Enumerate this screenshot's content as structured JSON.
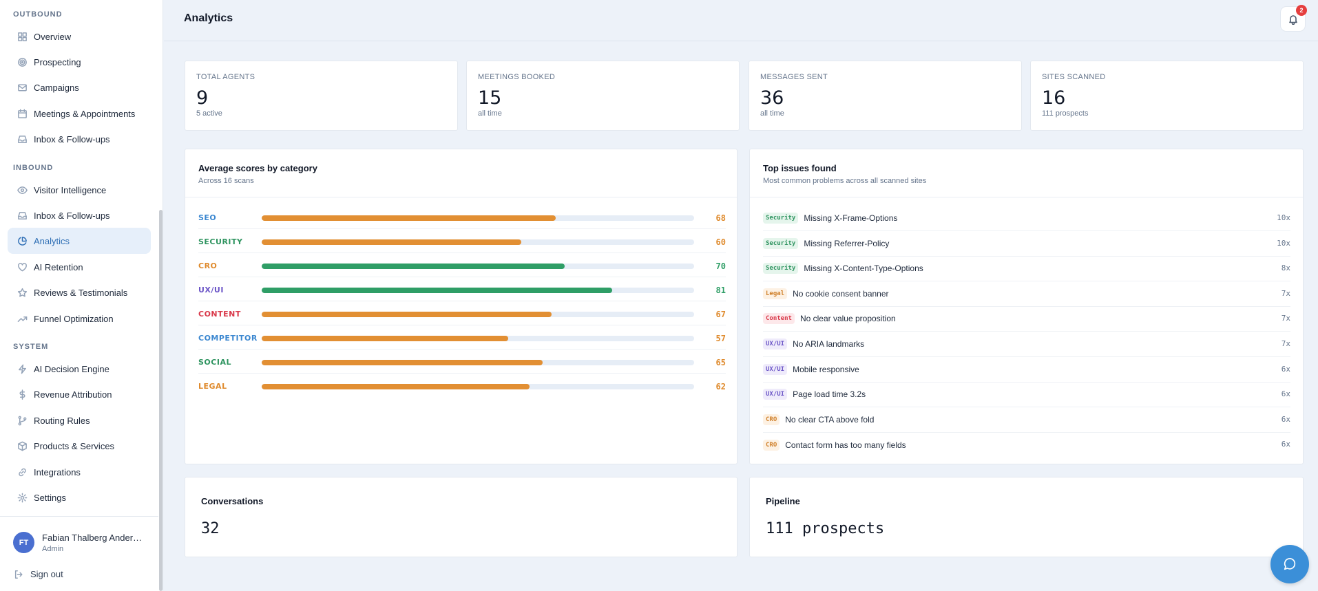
{
  "sidebar": {
    "sections": {
      "outbound": "OUTBOUND",
      "inbound": "INBOUND",
      "system": "SYSTEM"
    },
    "items": [
      {
        "label": "Overview",
        "icon": "grid-icon"
      },
      {
        "label": "Prospecting",
        "icon": "target-icon"
      },
      {
        "label": "Campaigns",
        "icon": "mail-icon"
      },
      {
        "label": "Meetings & Appointments",
        "icon": "calendar-icon"
      },
      {
        "label": "Inbox & Follow-ups",
        "icon": "inbox-icon"
      },
      {
        "label": "Visitor Intelligence",
        "icon": "eye-icon"
      },
      {
        "label": "Inbox & Follow-ups",
        "icon": "inbox-icon"
      },
      {
        "label": "Analytics",
        "icon": "pie-chart-icon",
        "active": true
      },
      {
        "label": "AI Retention",
        "icon": "heart-icon"
      },
      {
        "label": "Reviews & Testimonials",
        "icon": "star-icon"
      },
      {
        "label": "Funnel Optimization",
        "icon": "trending-up-icon"
      },
      {
        "label": "AI Decision Engine",
        "icon": "zap-icon"
      },
      {
        "label": "Revenue Attribution",
        "icon": "dollar-icon"
      },
      {
        "label": "Routing Rules",
        "icon": "git-branch-icon"
      },
      {
        "label": "Products & Services",
        "icon": "box-icon"
      },
      {
        "label": "Integrations",
        "icon": "link-icon"
      },
      {
        "label": "Settings",
        "icon": "gear-icon"
      }
    ],
    "user": {
      "initials": "FT",
      "name": "Fabian Thalberg Ander…",
      "role": "Admin"
    },
    "signout": "Sign out"
  },
  "header": {
    "title": "Analytics",
    "notifications": "2"
  },
  "stats": [
    {
      "label": "Total agents",
      "value": "9",
      "sub": "5 active"
    },
    {
      "label": "Meetings booked",
      "value": "15",
      "sub": "all time"
    },
    {
      "label": "Messages sent",
      "value": "36",
      "sub": "all time"
    },
    {
      "label": "Sites scanned",
      "value": "16",
      "sub": "111 prospects"
    }
  ],
  "scores": {
    "title": "Average scores by category",
    "subtitle": "Across 16 scans",
    "rows": [
      {
        "name": "SEO",
        "value": 68,
        "name_color": "#3b87d0",
        "bar_color": "#e28f33"
      },
      {
        "name": "SECURITY",
        "value": 60,
        "name_color": "#2f9460",
        "bar_color": "#e28f33"
      },
      {
        "name": "CRO",
        "value": 70,
        "name_color": "#df8a2c",
        "bar_color": "#2f9e66"
      },
      {
        "name": "UX/UI",
        "value": 81,
        "name_color": "#6b55c7",
        "bar_color": "#2f9e66"
      },
      {
        "name": "CONTENT",
        "value": 67,
        "name_color": "#d9394a",
        "bar_color": "#e28f33"
      },
      {
        "name": "COMPETITOR",
        "value": 57,
        "name_color": "#3b87d0",
        "bar_color": "#e28f33"
      },
      {
        "name": "SOCIAL",
        "value": 65,
        "name_color": "#2f9460",
        "bar_color": "#e28f33"
      },
      {
        "name": "LEGAL",
        "value": 62,
        "name_color": "#df8a2c",
        "bar_color": "#e28f33"
      }
    ]
  },
  "issues": {
    "title": "Top issues found",
    "subtitle": "Most common problems across all scanned sites",
    "rows": [
      {
        "tag": "Security",
        "text": "Missing X-Frame-Options",
        "count": "10x",
        "tag_color": "#2f9460",
        "tag_bg": "#e5f5ec"
      },
      {
        "tag": "Security",
        "text": "Missing Referrer-Policy",
        "count": "10x",
        "tag_color": "#2f9460",
        "tag_bg": "#e5f5ec"
      },
      {
        "tag": "Security",
        "text": "Missing X-Content-Type-Options",
        "count": "8x",
        "tag_color": "#2f9460",
        "tag_bg": "#e5f5ec"
      },
      {
        "tag": "Legal",
        "text": "No cookie consent banner",
        "count": "7x",
        "tag_color": "#d0802a",
        "tag_bg": "#fdf1e3"
      },
      {
        "tag": "Content",
        "text": "No clear value proposition",
        "count": "7x",
        "tag_color": "#d9394a",
        "tag_bg": "#fde8ea"
      },
      {
        "tag": "UX/UI",
        "text": "No ARIA landmarks",
        "count": "7x",
        "tag_color": "#6b55c7",
        "tag_bg": "#efebfb"
      },
      {
        "tag": "UX/UI",
        "text": "Mobile responsive",
        "count": "6x",
        "tag_color": "#6b55c7",
        "tag_bg": "#efebfb"
      },
      {
        "tag": "UX/UI",
        "text": "Page load time 3.2s",
        "count": "6x",
        "tag_color": "#6b55c7",
        "tag_bg": "#efebfb"
      },
      {
        "tag": "CRO",
        "text": "No clear CTA above fold",
        "count": "6x",
        "tag_color": "#d0802a",
        "tag_bg": "#fdf1e3"
      },
      {
        "tag": "CRO",
        "text": "Contact form has too many fields",
        "count": "6x",
        "tag_color": "#d0802a",
        "tag_bg": "#fdf1e3"
      }
    ]
  },
  "conversations": {
    "title": "Conversations",
    "value": "32"
  },
  "pipeline": {
    "title": "Pipeline",
    "value": "111 prospects"
  }
}
